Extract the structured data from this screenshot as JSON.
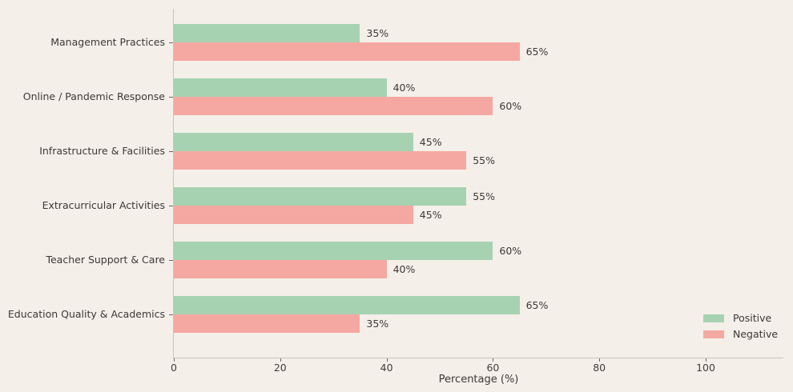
{
  "chart_data": {
    "type": "bar",
    "orientation": "horizontal",
    "categories": [
      "Management Practices",
      "Online / Pandemic Response",
      "Infrastructure & Facilities",
      "Extracurricular Activities",
      "Teacher Support & Care",
      "Education Quality & Academics"
    ],
    "series": [
      {
        "name": "Positive",
        "color": "#a7d2b2",
        "values": [
          35,
          40,
          45,
          55,
          60,
          65
        ],
        "labels": [
          "35%",
          "40%",
          "45%",
          "55%",
          "60%",
          "65%"
        ]
      },
      {
        "name": "Negative",
        "color": "#f5a8a1",
        "values": [
          65,
          60,
          55,
          45,
          40,
          35
        ],
        "labels": [
          "65%",
          "60%",
          "55%",
          "45%",
          "40%",
          "35%"
        ]
      }
    ],
    "xlabel": "Percentage (%)",
    "x_ticks": [
      0,
      20,
      40,
      60,
      80,
      100
    ],
    "x_tick_labels": [
      "0",
      "20",
      "40",
      "60",
      "80",
      "100"
    ],
    "xlim": [
      0,
      114.6
    ],
    "grid": false,
    "legend_position": "lower right",
    "background_color": "#f4efe9"
  }
}
